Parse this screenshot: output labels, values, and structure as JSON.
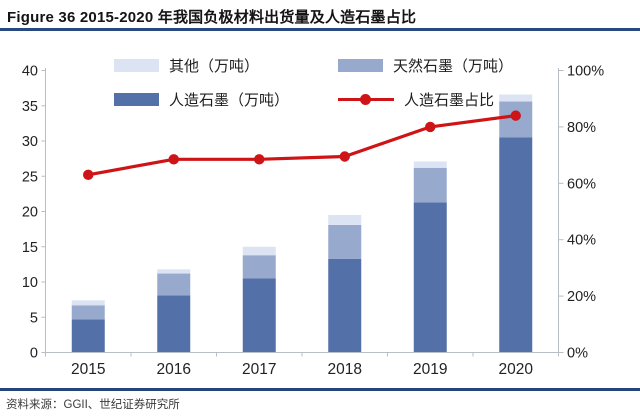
{
  "title": "Figure 36 2015-2020 年我国负极材料出货量及人造石墨占比",
  "source": "资料来源：GGII、世纪证券研究所",
  "colors": {
    "artificial": "#5470a8",
    "natural": "#97aace",
    "other": "#dce4f3",
    "line": "#cf1417",
    "rule": "#28497f",
    "footer_rule": "#23457a",
    "axis": "#b9bdc5",
    "tick_text": "#222222"
  },
  "legend": {
    "items": [
      {
        "label": "其他（万吨）",
        "marker": "swatch",
        "color_key": "other"
      },
      {
        "label": "天然石墨（万吨）",
        "marker": "swatch",
        "color_key": "natural"
      },
      {
        "label": "人造石墨（万吨）",
        "marker": "swatch",
        "color_key": "artificial"
      },
      {
        "label": "人造石墨占比",
        "marker": "line",
        "color_key": "line"
      }
    ]
  },
  "chart_data": {
    "type": "bar",
    "subtype": "stacked-bars-with-percentage-line",
    "title": "2015-2020 年我国负极材料出货量及人造石墨占比",
    "categories": [
      "2015",
      "2016",
      "2017",
      "2018",
      "2019",
      "2020"
    ],
    "series": [
      {
        "name": "人造石墨（万吨）",
        "type": "bar",
        "axis": "left",
        "color_key": "artificial",
        "values": [
          4.7,
          8.1,
          10.5,
          13.3,
          21.3,
          30.5
        ]
      },
      {
        "name": "天然石墨（万吨）",
        "type": "bar",
        "axis": "left",
        "color_key": "natural",
        "values": [
          2.0,
          3.1,
          3.3,
          4.8,
          4.9,
          5.1
        ]
      },
      {
        "name": "其他（万吨）",
        "type": "bar",
        "axis": "left",
        "color_key": "other",
        "values": [
          0.7,
          0.6,
          1.2,
          1.4,
          0.9,
          1.0
        ]
      },
      {
        "name": "人造石墨占比",
        "type": "line",
        "axis": "right",
        "color_key": "line",
        "unit": "%",
        "values": [
          63,
          68.5,
          68.5,
          69.5,
          80,
          84
        ]
      }
    ],
    "totals": [
      7.4,
      11.8,
      15.0,
      19.5,
      27.1,
      36.6
    ],
    "left_axis": {
      "min": 0,
      "max": 40,
      "step": 5,
      "tick_labels": [
        "0",
        "5",
        "10",
        "15",
        "20",
        "25",
        "30",
        "35",
        "40"
      ]
    },
    "right_axis": {
      "min": 0,
      "max": 100,
      "step": 20,
      "tick_labels": [
        "0%",
        "20%",
        "40%",
        "60%",
        "80%",
        "100%"
      ]
    },
    "grid": false,
    "legend_position": "top"
  }
}
